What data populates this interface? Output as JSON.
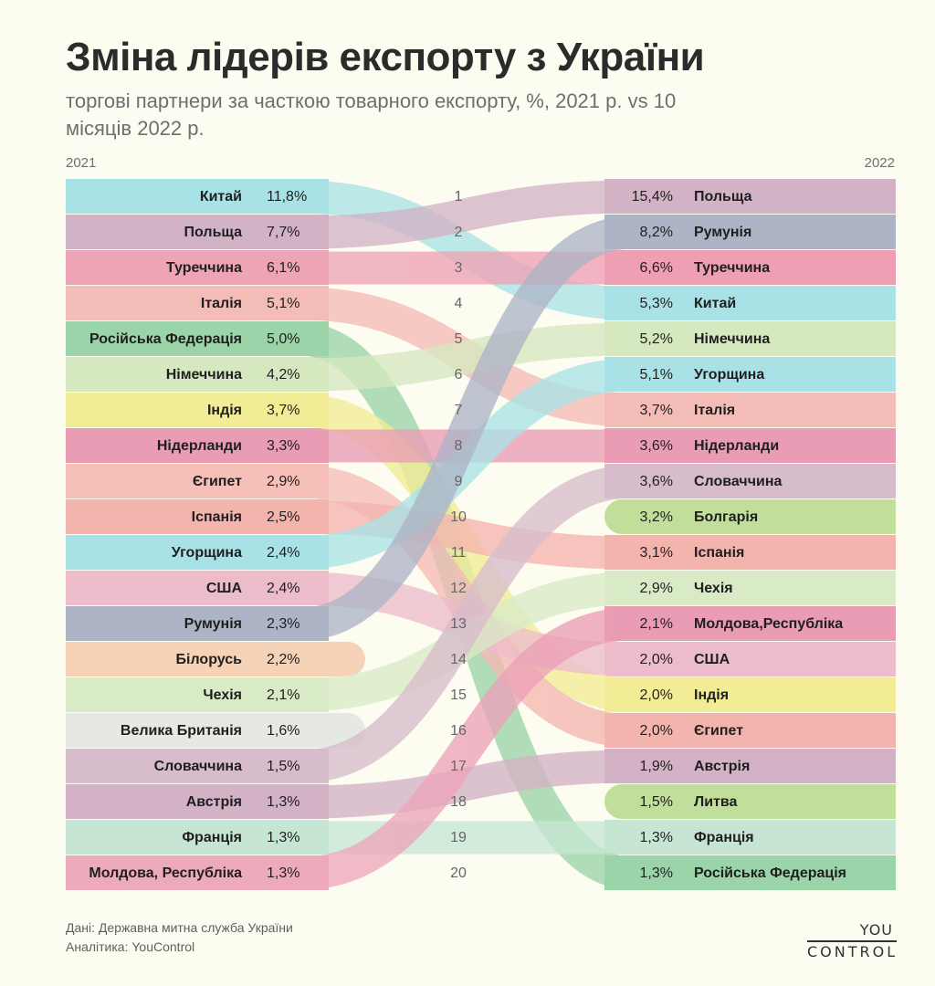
{
  "header": {
    "title": "Зміна лідерів експорту з України",
    "subtitle": "торгові партнери за часткою товарного експорту, %, 2021 р. vs 10 місяців 2022 р."
  },
  "chart_data": {
    "type": "bump",
    "title": "Зміна лідерів експорту з України",
    "left_label": "2021",
    "right_label": "2022",
    "ranks": [
      "1",
      "2",
      "3",
      "4",
      "5",
      "6",
      "7",
      "8",
      "9",
      "10",
      "11",
      "12",
      "13",
      "14",
      "15",
      "16",
      "17",
      "18",
      "19",
      "20"
    ],
    "left": [
      {
        "name": "Китай",
        "value": "11,8%",
        "to_rank": 4,
        "color": "#a9e2e6"
      },
      {
        "name": "Польща",
        "value": "7,7%",
        "to_rank": 1,
        "color": "#d2b3c6"
      },
      {
        "name": "Туреччина",
        "value": "6,1%",
        "to_rank": 3,
        "color": "#eda5b6"
      },
      {
        "name": "Італія",
        "value": "5,1%",
        "to_rank": 7,
        "color": "#f4bcb6"
      },
      {
        "name": "Російська Федерація",
        "value": "5,0%",
        "to_rank": 20,
        "color": "#9bd4a8"
      },
      {
        "name": "Німеччина",
        "value": "4,2%",
        "to_rank": 5,
        "color": "#d6e8c0"
      },
      {
        "name": "Індія",
        "value": "3,7%",
        "to_rank": 15,
        "color": "#f2ec96"
      },
      {
        "name": "Нідерланди",
        "value": "3,3%",
        "to_rank": 8,
        "color": "#ea9cb4"
      },
      {
        "name": "Єгипет",
        "value": "2,9%",
        "to_rank": 16,
        "color": "#f6bfb8"
      },
      {
        "name": "Іспанія",
        "value": "2,5%",
        "to_rank": 11,
        "color": "#f4b4ae"
      },
      {
        "name": "Угорщина",
        "value": "2,4%",
        "to_rank": 6,
        "color": "#a9e2e6"
      },
      {
        "name": "США",
        "value": "2,4%",
        "to_rank": 14,
        "color": "#edbccb"
      },
      {
        "name": "Румунія",
        "value": "2,3%",
        "to_rank": 2,
        "color": "#adb4c6"
      },
      {
        "name": "Білорусь",
        "value": "2,2%",
        "to_rank": null,
        "color": "#f6d2b6"
      },
      {
        "name": "Чехія",
        "value": "2,1%",
        "to_rank": 12,
        "color": "#d9eac6"
      },
      {
        "name": "Велика Британія",
        "value": "1,6%",
        "to_rank": null,
        "color": "#e5e8e3"
      },
      {
        "name": "Словаччина",
        "value": "1,5%",
        "to_rank": 9,
        "color": "#d7bccb"
      },
      {
        "name": "Австрія",
        "value": "1,3%",
        "to_rank": 17,
        "color": "#d3b2c5"
      },
      {
        "name": "Франція",
        "value": "1,3%",
        "to_rank": 19,
        "color": "#c6e6d3"
      },
      {
        "name": "Молдова, Республіка",
        "value": "1,3%",
        "to_rank": 13,
        "color": "#eeaabd"
      }
    ],
    "right": [
      {
        "name": "Польща",
        "value": "15,4%",
        "color": "#d2b3c6"
      },
      {
        "name": "Румунія",
        "value": "8,2%",
        "color": "#adb4c6"
      },
      {
        "name": "Туреччина",
        "value": "6,6%",
        "color": "#ef9fb4"
      },
      {
        "name": "Китай",
        "value": "5,3%",
        "color": "#a9e2e6"
      },
      {
        "name": "Німеччина",
        "value": "5,2%",
        "color": "#d6e8c0"
      },
      {
        "name": "Угорщина",
        "value": "5,1%",
        "color": "#a9e2e6"
      },
      {
        "name": "Італія",
        "value": "3,7%",
        "color": "#f4bcb6"
      },
      {
        "name": "Нідерланди",
        "value": "3,6%",
        "color": "#ea9cb4"
      },
      {
        "name": "Словаччина",
        "value": "3,6%",
        "color": "#d7bccb"
      },
      {
        "name": "Болгарія",
        "value": "3,2%",
        "color": "#c1df9b",
        "new": true
      },
      {
        "name": "Іспанія",
        "value": "3,1%",
        "color": "#f4b4ae"
      },
      {
        "name": "Чехія",
        "value": "2,9%",
        "color": "#d9eac6"
      },
      {
        "name": "Молдова,Республіка",
        "value": "2,1%",
        "color": "#ea9cb4"
      },
      {
        "name": "США",
        "value": "2,0%",
        "color": "#edbccb"
      },
      {
        "name": "Індія",
        "value": "2,0%",
        "color": "#f2ec96"
      },
      {
        "name": "Єгипет",
        "value": "2,0%",
        "color": "#f4b4ae"
      },
      {
        "name": "Австрія",
        "value": "1,9%",
        "color": "#d3b2c5"
      },
      {
        "name": "Литва",
        "value": "1,5%",
        "color": "#c1df9b",
        "new": true
      },
      {
        "name": "Франція",
        "value": "1,3%",
        "color": "#c6e6d3"
      },
      {
        "name": "Російська Федерація",
        "value": "1,3%",
        "color": "#9bd4a8"
      }
    ]
  },
  "footer": {
    "source": "Дані: Державна митна служба України",
    "analytics": "Аналітика: YouControl"
  },
  "logo": {
    "top": "YOU",
    "bottom": "CONTROL"
  }
}
